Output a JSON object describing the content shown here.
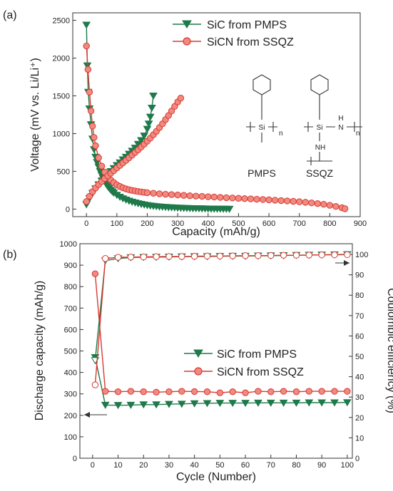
{
  "chart_data": [
    {
      "type": "line",
      "panel_label": "(a)",
      "xlabel": "Capacity (mAh/g)",
      "ylabel": "Voltage (mV vs. Li/Li⁺)",
      "xlim": [
        -45,
        900
      ],
      "ylim": [
        -100,
        2600
      ],
      "x_ticks": [
        0,
        100,
        200,
        300,
        400,
        500,
        600,
        700,
        800,
        900
      ],
      "y_ticks": [
        0,
        500,
        1000,
        1500,
        2000,
        2500
      ],
      "grid": false,
      "legend": "top-right",
      "colors": {
        "sic": "#1e7a4a",
        "sicn": "#d93a32"
      },
      "series": [
        {
          "name": "SiC from PMPS",
          "marker": "triangle-down",
          "discharge": {
            "x": [
              0,
              3,
              6,
              10,
              15,
              20,
              25,
              30,
              35,
              40,
              45,
              50,
              55,
              60,
              65,
              70,
              75,
              80,
              85,
              90,
              100,
              110,
              120,
              130,
              140,
              150,
              160,
              170,
              180,
              190,
              200,
              210,
              220,
              230,
              240,
              250,
              260,
              270,
              280,
              290,
              300,
              310,
              320,
              330,
              340,
              350,
              360,
              370,
              380,
              390,
              400,
              410,
              420,
              430,
              440,
              450,
              460,
              470
            ],
            "y": [
              2440,
              1900,
              1550,
              1330,
              1120,
              930,
              790,
              690,
              620,
              560,
              500,
              450,
              405,
              365,
              330,
              300,
              275,
              252,
              232,
              214,
              185,
              160,
              140,
              123,
              108,
              95,
              84,
              74,
              65,
              57,
              50,
              44,
              39,
              35,
              31,
              28,
              25,
              22,
              20,
              18,
              16,
              14,
              12,
              11,
              10,
              9,
              8,
              7,
              6,
              5,
              4,
              3,
              3,
              2,
              2,
              1,
              1,
              0
            ]
          },
          "charge": {
            "x": [
              0,
              10,
              20,
              30,
              40,
              50,
              60,
              70,
              80,
              90,
              100,
              110,
              120,
              130,
              140,
              150,
              160,
              170,
              180,
              190,
              200,
              205,
              210,
              215,
              220
            ],
            "y": [
              60,
              140,
              210,
              270,
              325,
              375,
              420,
              460,
              500,
              540,
              580,
              615,
              655,
              690,
              730,
              770,
              810,
              860,
              910,
              970,
              1060,
              1130,
              1220,
              1340,
              1500
            ]
          }
        },
        {
          "name": "SiCN from SSQZ",
          "marker": "circle",
          "discharge": {
            "x": [
              0,
              5,
              10,
              15,
              20,
              25,
              30,
              40,
              50,
              60,
              70,
              80,
              90,
              100,
              110,
              120,
              130,
              140,
              150,
              160,
              170,
              180,
              190,
              200,
              220,
              240,
              260,
              280,
              300,
              320,
              340,
              360,
              380,
              400,
              420,
              440,
              460,
              480,
              500,
              520,
              540,
              560,
              580,
              600,
              620,
              640,
              660,
              680,
              700,
              720,
              740,
              760,
              780,
              800,
              820,
              840,
              850
            ],
            "y": [
              2160,
              1850,
              1550,
              1300,
              1100,
              950,
              840,
              680,
              570,
              490,
              430,
              385,
              350,
              322,
              300,
              282,
              268,
              257,
              248,
              240,
              233,
              227,
              222,
              217,
              210,
              203,
              197,
              192,
              187,
              182,
              177,
              172,
              168,
              164,
              160,
              155,
              151,
              147,
              143,
              139,
              135,
              131,
              127,
              123,
              118,
              113,
              108,
              103,
              97,
              90,
              82,
              73,
              63,
              50,
              35,
              18,
              5
            ]
          },
          "charge": {
            "x": [
              0,
              10,
              20,
              30,
              40,
              50,
              60,
              70,
              80,
              90,
              100,
              110,
              120,
              130,
              140,
              150,
              160,
              170,
              180,
              190,
              200,
              210,
              220,
              230,
              240,
              250,
              260,
              270,
              280,
              290,
              300,
              310
            ],
            "y": [
              100,
              170,
              230,
              280,
              325,
              365,
              405,
              440,
              475,
              510,
              545,
              578,
              612,
              645,
              680,
              715,
              750,
              785,
              822,
              860,
              900,
              940,
              985,
              1030,
              1080,
              1130,
              1185,
              1240,
              1300,
              1360,
              1420,
              1470
            ]
          }
        }
      ],
      "inset": {
        "structures": [
          {
            "label": "PMPS",
            "atoms": [
              "Si",
              "n"
            ]
          },
          {
            "label": "SSQZ",
            "atoms": [
              "Si",
              "N",
              "H",
              "NH",
              "n"
            ]
          }
        ]
      }
    },
    {
      "type": "line",
      "panel_label": "(b)",
      "xlabel": "Cycle (Number)",
      "ylabel": "Discharge capacity (mAh/g)",
      "ylabel_right": "Coulombic efficiency (%)",
      "xlim": [
        -5,
        102
      ],
      "ylim": [
        0,
        1000
      ],
      "ylim_right": [
        0,
        105.26
      ],
      "x_ticks": [
        0,
        10,
        20,
        30,
        40,
        50,
        60,
        70,
        80,
        90,
        100
      ],
      "y_ticks": [
        0,
        100,
        200,
        300,
        400,
        500,
        600,
        700,
        800,
        900,
        1000
      ],
      "y_ticks_right": [
        0,
        10,
        20,
        30,
        40,
        50,
        60,
        70,
        80,
        90,
        100
      ],
      "grid": false,
      "legend": "center-right",
      "series": [
        {
          "name": "SiC from PMPS",
          "axis": "left",
          "marker": "triangle-down",
          "x": [
            1,
            5,
            10,
            15,
            20,
            25,
            30,
            35,
            40,
            45,
            50,
            55,
            60,
            65,
            70,
            75,
            80,
            85,
            90,
            95,
            100
          ],
          "y": [
            470,
            248,
            247,
            248,
            250,
            250,
            252,
            253,
            255,
            256,
            257,
            257,
            257,
            258,
            258,
            258,
            258,
            259,
            259,
            259,
            260
          ]
        },
        {
          "name": "SiCN from SSQZ",
          "axis": "left",
          "marker": "circle",
          "x": [
            1,
            5,
            10,
            15,
            20,
            25,
            30,
            35,
            40,
            45,
            50,
            55,
            60,
            65,
            70,
            75,
            80,
            85,
            90,
            95,
            100
          ],
          "y": [
            860,
            312,
            310,
            312,
            310,
            308,
            310,
            312,
            311,
            310,
            305,
            310,
            305,
            312,
            310,
            312,
            310,
            312,
            312,
            312,
            312
          ]
        },
        {
          "name": "",
          "axis": "right",
          "marker": "triangle-down-open",
          "x": [
            1,
            5,
            10,
            15,
            20,
            25,
            30,
            35,
            40,
            45,
            50,
            55,
            60,
            65,
            70,
            75,
            80,
            85,
            90,
            95,
            100
          ],
          "y": [
            48,
            97,
            98,
            98.5,
            98.6,
            98.7,
            98.8,
            98.9,
            99,
            99,
            99.1,
            99.2,
            99.2,
            99.3,
            99.4,
            99.5,
            99.6,
            99.7,
            99.8,
            99.9,
            100
          ]
        },
        {
          "name": "",
          "axis": "right",
          "marker": "circle-open",
          "x": [
            1,
            5,
            10,
            15,
            20,
            25,
            30,
            35,
            40,
            45,
            50,
            55,
            60,
            65,
            70,
            75,
            80,
            85,
            90,
            95,
            100
          ],
          "y": [
            36,
            98,
            98.6,
            98.7,
            98.8,
            98.9,
            99,
            99,
            99.1,
            99.2,
            99.2,
            99.3,
            99.4,
            99.4,
            99.5,
            99.6,
            99.6,
            99.7,
            99.8,
            99.8,
            99.9
          ]
        }
      ],
      "arrows": [
        "left-axis",
        "right-axis"
      ]
    }
  ]
}
